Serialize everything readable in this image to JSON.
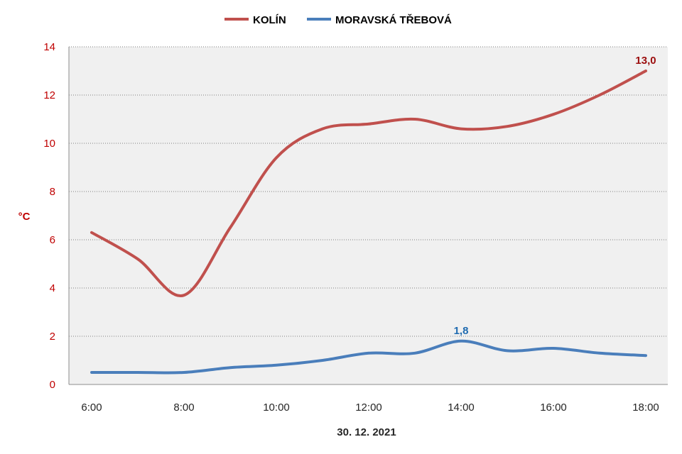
{
  "chart_data": {
    "type": "line",
    "x": [
      "6:00",
      "7:00",
      "8:00",
      "9:00",
      "10:00",
      "11:00",
      "12:00",
      "13:00",
      "14:00",
      "15:00",
      "16:00",
      "17:00",
      "18:00"
    ],
    "xtick_labels": [
      "6:00",
      "8:00",
      "10:00",
      "12:00",
      "14:00",
      "16:00",
      "18:00"
    ],
    "series": [
      {
        "name": "KOLÍN",
        "color": "#c0504d",
        "values": [
          6.3,
          5.2,
          3.7,
          6.5,
          9.4,
          10.6,
          10.8,
          11.0,
          10.6,
          10.7,
          11.2,
          12.0,
          13.0
        ],
        "data_label": {
          "text": "13,0",
          "index": 12,
          "color": "#9b0d0d"
        }
      },
      {
        "name": "MORAVSKÁ TŘEBOVÁ",
        "color": "#4a7ebb",
        "values": [
          0.5,
          0.5,
          0.5,
          0.7,
          0.8,
          1.0,
          1.3,
          1.3,
          1.8,
          1.4,
          1.5,
          1.3,
          1.2
        ],
        "data_label": {
          "text": "1,8",
          "index": 8,
          "color": "#1f6bb0"
        }
      }
    ],
    "title": "",
    "xlabel": "30. 12. 2021",
    "ylabel": "°C",
    "ylim": [
      0,
      14
    ],
    "yticks": [
      "0",
      "2",
      "4",
      "6",
      "8",
      "10",
      "12",
      "14"
    ],
    "ytick_color": "#c00000",
    "ylabel_color": "#c00000",
    "grid": "horizontal dotted",
    "plot_background": "#f0f0f0",
    "legend": "top-center"
  }
}
